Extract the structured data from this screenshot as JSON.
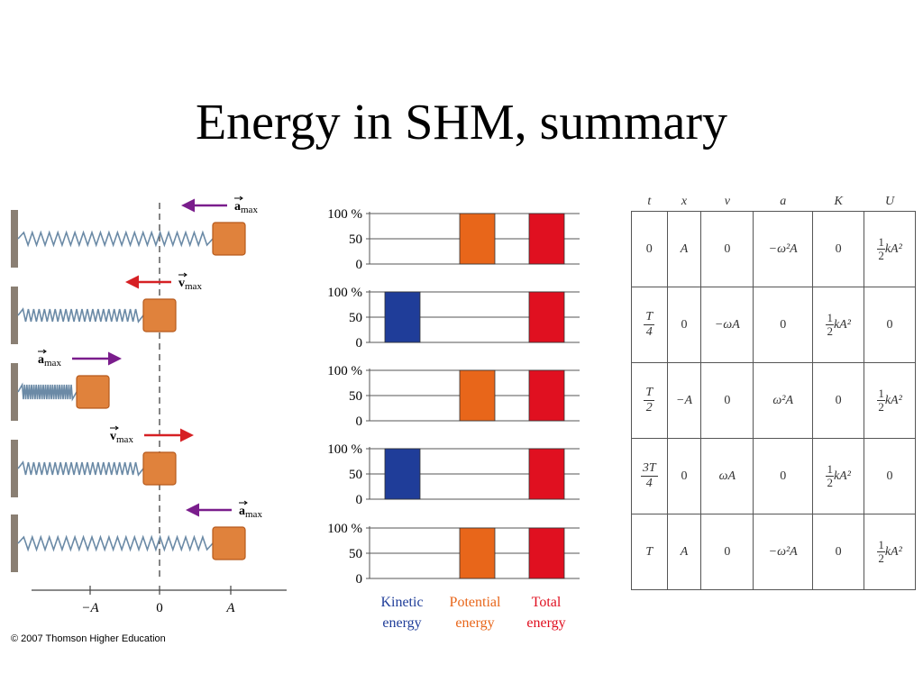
{
  "title": "Energy in SHM, summary",
  "copyright": "© 2007 Thomson Higher Education",
  "spring_panel": {
    "axis_ticks": [
      "−A",
      "0",
      "A"
    ],
    "rows": [
      {
        "arrow_label": "a",
        "arrow_sub": "max",
        "arrow_dir": "left",
        "arrow_color": "#7a1d8c"
      },
      {
        "arrow_label": "v",
        "arrow_sub": "max",
        "arrow_dir": "left",
        "arrow_color": "#d62024"
      },
      {
        "arrow_label": "a",
        "arrow_sub": "max",
        "arrow_dir": "right",
        "arrow_color": "#7a1d8c"
      },
      {
        "arrow_label": "v",
        "arrow_sub": "max",
        "arrow_dir": "right",
        "arrow_color": "#d62024"
      },
      {
        "arrow_label": "a",
        "arrow_sub": "max",
        "arrow_dir": "left",
        "arrow_color": "#7a1d8c"
      }
    ],
    "block_color": "#e0823c",
    "spring_color": "#6b8aa6"
  },
  "chart_data": {
    "type": "bar",
    "categories": [
      "Kinetic energy",
      "Potential energy",
      "Total energy"
    ],
    "y_ticks": [
      "100 %",
      "50",
      "0"
    ],
    "ylim": [
      0,
      100
    ],
    "colors": {
      "kinetic": "#1f3d99",
      "potential": "#e8661a",
      "total": "#e01020"
    },
    "panels": [
      {
        "kinetic": 0,
        "potential": 100,
        "total": 100
      },
      {
        "kinetic": 100,
        "potential": 0,
        "total": 100
      },
      {
        "kinetic": 0,
        "potential": 100,
        "total": 100
      },
      {
        "kinetic": 100,
        "potential": 0,
        "total": 100
      },
      {
        "kinetic": 0,
        "potential": 100,
        "total": 100
      }
    ],
    "legend": [
      {
        "line1": "Kinetic",
        "line2": "energy",
        "color": "#1f3d99"
      },
      {
        "line1": "Potential",
        "line2": "energy",
        "color": "#e8661a"
      },
      {
        "line1": "Total",
        "line2": "energy",
        "color": "#e01020"
      }
    ]
  },
  "table": {
    "headers": [
      "t",
      "x",
      "v",
      "a",
      "K",
      "U"
    ],
    "rows": [
      {
        "t": "0",
        "x": "A",
        "v": "0",
        "a": "−ω²A",
        "K": "0",
        "U": "½kA²"
      },
      {
        "t": "T/4",
        "x": "0",
        "v": "−ωA",
        "a": "0",
        "K": "½kA²",
        "U": "0"
      },
      {
        "t": "T/2",
        "x": "−A",
        "v": "0",
        "a": "ω²A",
        "K": "0",
        "U": "½kA²"
      },
      {
        "t": "3T/4",
        "x": "0",
        "v": "ωA",
        "a": "0",
        "K": "½kA²",
        "U": "0"
      },
      {
        "t": "T",
        "x": "A",
        "v": "0",
        "a": "−ω²A",
        "K": "0",
        "U": "½kA²"
      }
    ]
  }
}
